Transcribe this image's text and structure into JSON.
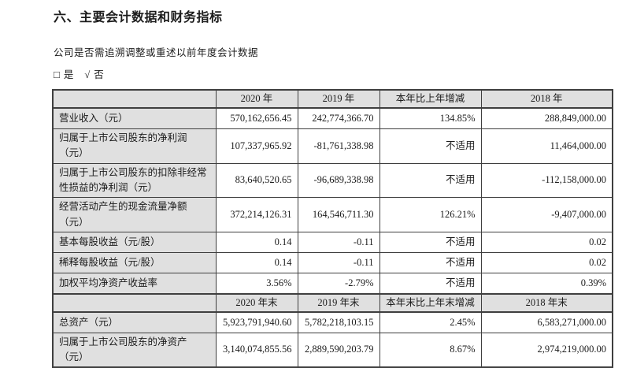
{
  "page": {
    "title": "六、主要会计数据和财务指标",
    "question": "公司是否需追溯调整或重述以前年度会计数据",
    "checkbox": {
      "yes_box": "□",
      "yes_label": "是",
      "check_mark": "√",
      "no_label": "否"
    }
  },
  "colors": {
    "shaded_cell_bg": "#e0e0e0",
    "border": "#3f3f3f",
    "text": "#1c1c1c"
  },
  "table": {
    "sections": [
      {
        "header": [
          "",
          "2020 年",
          "2019 年",
          "本年比上年增减",
          "2018 年"
        ],
        "rows": [
          {
            "label": "营业收入（元）",
            "values": [
              "570,162,656.45",
              "242,774,366.70",
              "134.85%",
              "288,849,000.00"
            ]
          },
          {
            "label": "归属于上市公司股东的净利润（元）",
            "values": [
              "107,337,965.92",
              "-81,761,338.98",
              "不适用",
              "11,464,000.00"
            ]
          },
          {
            "label": "归属于上市公司股东的扣除非经常性损益的净利润（元）",
            "values": [
              "83,640,520.65",
              "-96,689,338.98",
              "不适用",
              "-112,158,000.00"
            ]
          },
          {
            "label": "经营活动产生的现金流量净额（元）",
            "values": [
              "372,214,126.31",
              "164,546,711.30",
              "126.21%",
              "-9,407,000.00"
            ]
          },
          {
            "label": "基本每股收益（元/股）",
            "values": [
              "0.14",
              "-0.11",
              "不适用",
              "0.02"
            ]
          },
          {
            "label": "稀释每股收益（元/股）",
            "values": [
              "0.14",
              "-0.11",
              "不适用",
              "0.02"
            ]
          },
          {
            "label": "加权平均净资产收益率",
            "values": [
              "3.56%",
              "-2.79%",
              "不适用",
              "0.39%"
            ]
          }
        ]
      },
      {
        "header": [
          "",
          "2020 年末",
          "2019 年末",
          "本年末比上年末增减",
          "2018 年末"
        ],
        "rows": [
          {
            "label": "总资产（元）",
            "values": [
              "5,923,791,940.60",
              "5,782,218,103.15",
              "2.45%",
              "6,583,271,000.00"
            ]
          },
          {
            "label": "归属于上市公司股东的净资产（元）",
            "values": [
              "3,140,074,855.56",
              "2,889,590,203.79",
              "8.67%",
              "2,974,219,000.00"
            ]
          }
        ]
      }
    ]
  }
}
